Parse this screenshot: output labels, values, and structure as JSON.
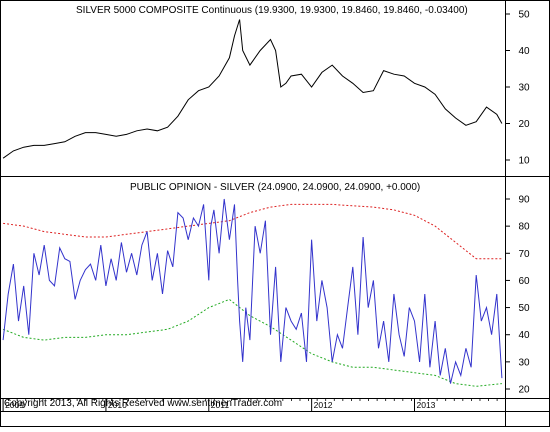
{
  "chart_data": [
    {
      "type": "line",
      "title": "SILVER 5000 COMPOSITE Continuous (19.9300, 19.9300, 19.8460, 19.8460, -0.03400)",
      "ylim": [
        5,
        55
      ],
      "yticks": [
        10,
        20,
        30,
        40,
        50
      ],
      "grid": false,
      "series": [
        {
          "color": "#000000",
          "x": [
            2009.0,
            2009.1,
            2009.2,
            2009.3,
            2009.4,
            2009.5,
            2009.6,
            2009.7,
            2009.8,
            2009.9,
            2010.0,
            2010.1,
            2010.2,
            2010.3,
            2010.4,
            2010.5,
            2010.6,
            2010.7,
            2010.8,
            2010.9,
            2011.0,
            2011.1,
            2011.2,
            2011.25,
            2011.3,
            2011.33,
            2011.4,
            2011.5,
            2011.6,
            2011.65,
            2011.7,
            2011.75,
            2011.8,
            2011.9,
            2012.0,
            2012.1,
            2012.2,
            2012.3,
            2012.4,
            2012.5,
            2012.6,
            2012.7,
            2012.8,
            2012.9,
            2013.0,
            2013.1,
            2013.2,
            2013.3,
            2013.4,
            2013.5,
            2013.6,
            2013.7,
            2013.8,
            2013.85
          ],
          "values": [
            10.5,
            12.5,
            13.5,
            14.0,
            14.0,
            14.5,
            15.0,
            16.5,
            17.5,
            17.5,
            17.0,
            16.5,
            17.0,
            18.0,
            18.5,
            18.0,
            19.0,
            22.0,
            26.5,
            29.0,
            30.0,
            33.0,
            38.0,
            44.0,
            48.5,
            40.0,
            36.0,
            40.0,
            43.0,
            40.0,
            30.0,
            31.0,
            33.0,
            33.5,
            30.0,
            34.0,
            36.0,
            33.0,
            31.0,
            28.5,
            29.0,
            34.5,
            33.5,
            33.0,
            31.0,
            30.0,
            28.0,
            24.0,
            21.5,
            19.5,
            20.5,
            24.5,
            22.5,
            20.0
          ]
        }
      ]
    },
    {
      "type": "line",
      "title": "PUBLIC OPINION - SILVER (24.0900, 24.0900, 24.0900, +0.000)",
      "ylim": [
        15,
        95
      ],
      "yticks": [
        20,
        30,
        40,
        50,
        60,
        70,
        80,
        90
      ],
      "grid": false,
      "xlim": [
        2008.97,
        2013.88
      ],
      "xticks": [
        2009,
        2010,
        2011,
        2012,
        2013
      ],
      "xtick_labels": [
        "2009",
        "2010",
        "2011",
        "2012",
        "2013"
      ],
      "series": [
        {
          "color": "#3333cc",
          "x": [
            2009.0,
            2009.05,
            2009.1,
            2009.15,
            2009.2,
            2009.25,
            2009.3,
            2009.35,
            2009.4,
            2009.45,
            2009.5,
            2009.55,
            2009.6,
            2009.65,
            2009.7,
            2009.75,
            2009.8,
            2009.85,
            2009.9,
            2009.95,
            2010.0,
            2010.05,
            2010.1,
            2010.15,
            2010.2,
            2010.25,
            2010.3,
            2010.35,
            2010.4,
            2010.45,
            2010.5,
            2010.55,
            2010.6,
            2010.65,
            2010.7,
            2010.75,
            2010.8,
            2010.85,
            2010.9,
            2010.95,
            2011.0,
            2011.02,
            2011.05,
            2011.1,
            2011.15,
            2011.2,
            2011.25,
            2011.28,
            2011.3,
            2011.33,
            2011.36,
            2011.4,
            2011.45,
            2011.5,
            2011.55,
            2011.6,
            2011.65,
            2011.7,
            2011.75,
            2011.8,
            2011.85,
            2011.9,
            2011.95,
            2012.0,
            2012.05,
            2012.1,
            2012.15,
            2012.2,
            2012.25,
            2012.3,
            2012.35,
            2012.4,
            2012.45,
            2012.5,
            2012.55,
            2012.6,
            2012.65,
            2012.7,
            2012.75,
            2012.8,
            2012.85,
            2012.9,
            2012.95,
            2013.0,
            2013.05,
            2013.1,
            2013.15,
            2013.2,
            2013.25,
            2013.3,
            2013.35,
            2013.4,
            2013.45,
            2013.5,
            2013.55,
            2013.6,
            2013.65,
            2013.7,
            2013.75,
            2013.8,
            2013.85
          ],
          "values": [
            38,
            55,
            66,
            45,
            58,
            40,
            70,
            62,
            73,
            60,
            58,
            72,
            68,
            67,
            53,
            60,
            64,
            66,
            60,
            73,
            58,
            68,
            60,
            74,
            63,
            70,
            62,
            73,
            78,
            60,
            70,
            55,
            71,
            65,
            85,
            83,
            75,
            83,
            80,
            88,
            60,
            80,
            86,
            70,
            90,
            75,
            88,
            60,
            45,
            30,
            50,
            38,
            80,
            70,
            82,
            40,
            65,
            30,
            50,
            45,
            42,
            48,
            30,
            75,
            45,
            60,
            50,
            30,
            40,
            35,
            50,
            65,
            40,
            76,
            50,
            60,
            35,
            45,
            30,
            55,
            40,
            32,
            50,
            45,
            30,
            55,
            28,
            45,
            25,
            35,
            22,
            30,
            25,
            35,
            28,
            62,
            45,
            50,
            40,
            55,
            24
          ]
        },
        {
          "color": "#dd2222",
          "x": [
            2009.0,
            2009.2,
            2009.4,
            2009.6,
            2009.8,
            2010.0,
            2010.2,
            2010.4,
            2010.6,
            2010.8,
            2011.0,
            2011.2,
            2011.4,
            2011.6,
            2011.8,
            2012.0,
            2012.2,
            2012.4,
            2012.6,
            2012.8,
            2013.0,
            2013.2,
            2013.4,
            2013.6,
            2013.85
          ],
          "values": [
            81,
            80,
            78,
            77,
            76,
            76,
            77,
            78,
            79,
            80,
            81,
            82,
            85,
            87,
            88,
            88,
            88,
            87.5,
            87,
            86,
            84,
            80,
            74,
            68,
            68
          ]
        },
        {
          "color": "#22aa22",
          "x": [
            2009.0,
            2009.2,
            2009.4,
            2009.6,
            2009.8,
            2010.0,
            2010.2,
            2010.4,
            2010.6,
            2010.8,
            2011.0,
            2011.2,
            2011.4,
            2011.6,
            2011.8,
            2012.0,
            2012.2,
            2012.4,
            2012.6,
            2012.8,
            2013.0,
            2013.2,
            2013.4,
            2013.6,
            2013.85
          ],
          "values": [
            42,
            39,
            38,
            39,
            39,
            40,
            40,
            41,
            42,
            45,
            50,
            53,
            47,
            43,
            38,
            33,
            30,
            28,
            28,
            27,
            26,
            25,
            22,
            21,
            22
          ]
        }
      ]
    }
  ],
  "footer": {
    "copyright": "Copyright 2013, All Rights Reserved  www.sentimenTrader.com"
  }
}
